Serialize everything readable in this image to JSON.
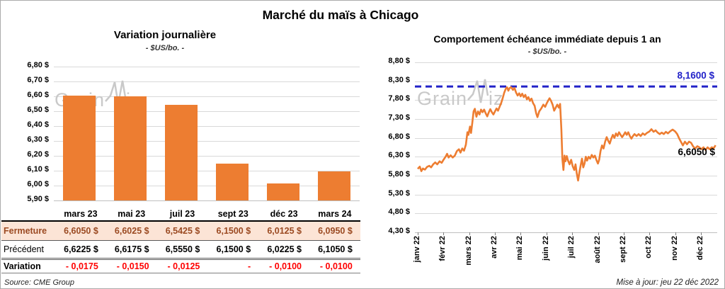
{
  "page": {
    "title": "Marché du maïs à Chicago",
    "watermark": {
      "text": "GrainWiz",
      "part1": "Grain",
      "part2": "iz"
    },
    "source": "Source: CME Group",
    "updated": "Mise à jour: jeu 22 déc 2022"
  },
  "colors": {
    "orange": "#ED7D31",
    "blue": "#2222C8",
    "red": "#FF0000",
    "fermeture_bg": "#FCE4D6",
    "fermeture_text": "#9B4A22",
    "grid": "#D9D9D9"
  },
  "chart_data": [
    {
      "type": "bar",
      "title": "Variation journalière",
      "subtitle": "- $US/bo. -",
      "categories": [
        "mars 23",
        "mai 23",
        "juil 23",
        "sept 23",
        "déc 23",
        "mars 24"
      ],
      "values": [
        6.605,
        6.6025,
        6.5425,
        6.15,
        6.0125,
        6.095
      ],
      "ylim": [
        5.9,
        6.8
      ],
      "ytick_step": 0.1,
      "yticks": [
        "6,80 $",
        "6,70 $",
        "6,60 $",
        "6,50 $",
        "6,40 $",
        "6,30 $",
        "6,20 $",
        "6,10 $",
        "6,00 $",
        "5,90 $"
      ],
      "grid": true,
      "bar_color": "#ED7D31",
      "table": {
        "rows": [
          {
            "kind": "fermeture",
            "label": "Fermeture",
            "values": [
              "6,6050 $",
              "6,6025 $",
              "6,5425 $",
              "6,1500 $",
              "6,0125 $",
              "6,0950 $"
            ]
          },
          {
            "kind": "precedent",
            "label": "Précédent",
            "values": [
              "6,6225 $",
              "6,6175 $",
              "6,5550 $",
              "6,1500 $",
              "6,0225 $",
              "6,1050 $"
            ]
          },
          {
            "kind": "variation",
            "label": "Variation",
            "values": [
              "- 0,0175",
              "- 0,0150",
              "- 0,0125",
              "-",
              "- 0,0100",
              "- 0,0100"
            ]
          }
        ]
      }
    },
    {
      "type": "line",
      "title": "Comportement échéance immédiate depuis 1 an",
      "subtitle": "- $US/bo. -",
      "x_labels": [
        "janv 22",
        "févr 22",
        "mars 22",
        "avr 22",
        "mai 22",
        "juin 22",
        "juil 22",
        "août 22",
        "sept 22",
        "oct 22",
        "nov 22",
        "déc 22"
      ],
      "ylim": [
        4.3,
        8.8
      ],
      "ytick_step": 0.5,
      "yticks": [
        "8,80 $",
        "8,30 $",
        "7,80 $",
        "7,30 $",
        "6,80 $",
        "6,30 $",
        "5,80 $",
        "5,30 $",
        "4,80 $",
        "4,30 $"
      ],
      "grid": true,
      "line_color": "#ED7D31",
      "reference_line": {
        "value": 8.16,
        "label": "8,1600 $",
        "color": "#2222C8"
      },
      "last_value": 6.605,
      "last_value_label": "6,6050 $",
      "points": [
        [
          0,
          5.98
        ],
        [
          0.08,
          6.04
        ],
        [
          0.14,
          5.92
        ],
        [
          0.2,
          5.99
        ],
        [
          0.28,
          5.96
        ],
        [
          0.36,
          6.03
        ],
        [
          0.45,
          6.06
        ],
        [
          0.52,
          6.02
        ],
        [
          0.6,
          6.1
        ],
        [
          0.68,
          6.15
        ],
        [
          0.76,
          6.1
        ],
        [
          0.85,
          6.18
        ],
        [
          0.93,
          6.14
        ],
        [
          1.0,
          6.22
        ],
        [
          1.08,
          6.3
        ],
        [
          1.14,
          6.38
        ],
        [
          1.2,
          6.28
        ],
        [
          1.28,
          6.34
        ],
        [
          1.36,
          6.28
        ],
        [
          1.44,
          6.33
        ],
        [
          1.52,
          6.45
        ],
        [
          1.6,
          6.5
        ],
        [
          1.66,
          6.41
        ],
        [
          1.73,
          6.52
        ],
        [
          1.8,
          6.46
        ],
        [
          1.87,
          6.62
        ],
        [
          1.93,
          6.95
        ],
        [
          1.97,
          6.88
        ],
        [
          2.03,
          7.1
        ],
        [
          2.07,
          6.93
        ],
        [
          2.12,
          7.2
        ],
        [
          2.17,
          7.5
        ],
        [
          2.22,
          7.57
        ],
        [
          2.28,
          7.36
        ],
        [
          2.34,
          7.5
        ],
        [
          2.4,
          7.42
        ],
        [
          2.46,
          7.55
        ],
        [
          2.52,
          7.48
        ],
        [
          2.58,
          7.55
        ],
        [
          2.64,
          7.45
        ],
        [
          2.7,
          7.37
        ],
        [
          2.76,
          7.48
        ],
        [
          2.82,
          7.56
        ],
        [
          2.88,
          7.48
        ],
        [
          2.94,
          7.42
        ],
        [
          3.0,
          7.5
        ],
        [
          3.06,
          7.58
        ],
        [
          3.12,
          7.52
        ],
        [
          3.18,
          7.62
        ],
        [
          3.24,
          7.72
        ],
        [
          3.3,
          7.85
        ],
        [
          3.36,
          8.0
        ],
        [
          3.42,
          8.1
        ],
        [
          3.47,
          8.14
        ],
        [
          3.52,
          8.05
        ],
        [
          3.57,
          8.12
        ],
        [
          3.63,
          8.14
        ],
        [
          3.7,
          8.07
        ],
        [
          3.76,
          8.12
        ],
        [
          3.82,
          8.0
        ],
        [
          3.88,
          7.92
        ],
        [
          3.94,
          7.98
        ],
        [
          4.0,
          7.9
        ],
        [
          4.06,
          7.97
        ],
        [
          4.12,
          7.88
        ],
        [
          4.18,
          7.94
        ],
        [
          4.24,
          7.82
        ],
        [
          4.3,
          7.88
        ],
        [
          4.36,
          7.78
        ],
        [
          4.42,
          7.84
        ],
        [
          4.48,
          7.72
        ],
        [
          4.54,
          7.65
        ],
        [
          4.6,
          7.45
        ],
        [
          4.65,
          7.35
        ],
        [
          4.72,
          7.5
        ],
        [
          4.8,
          7.58
        ],
        [
          4.88,
          7.68
        ],
        [
          4.95,
          7.62
        ],
        [
          5.0,
          7.7
        ],
        [
          5.06,
          7.78
        ],
        [
          5.12,
          7.85
        ],
        [
          5.18,
          7.78
        ],
        [
          5.24,
          7.68
        ],
        [
          5.3,
          7.52
        ],
        [
          5.36,
          7.6
        ],
        [
          5.42,
          7.68
        ],
        [
          5.48,
          7.6
        ],
        [
          5.53,
          7.7
        ],
        [
          5.58,
          7.02
        ],
        [
          5.62,
          6.25
        ],
        [
          5.66,
          5.95
        ],
        [
          5.7,
          6.33
        ],
        [
          5.74,
          6.18
        ],
        [
          5.79,
          6.32
        ],
        [
          5.84,
          6.2
        ],
        [
          5.9,
          6.1
        ],
        [
          5.96,
          6.22
        ],
        [
          6.02,
          6.05
        ],
        [
          6.08,
          5.95
        ],
        [
          6.13,
          6.1
        ],
        [
          6.18,
          5.85
        ],
        [
          6.23,
          5.67
        ],
        [
          6.28,
          5.88
        ],
        [
          6.33,
          6.08
        ],
        [
          6.38,
          6.25
        ],
        [
          6.43,
          6.02
        ],
        [
          6.48,
          6.12
        ],
        [
          6.53,
          6.3
        ],
        [
          6.58,
          6.2
        ],
        [
          6.64,
          6.3
        ],
        [
          6.7,
          6.25
        ],
        [
          6.76,
          6.35
        ],
        [
          6.82,
          6.28
        ],
        [
          6.88,
          6.33
        ],
        [
          6.94,
          6.22
        ],
        [
          7.0,
          6.12
        ],
        [
          7.05,
          6.22
        ],
        [
          7.1,
          6.45
        ],
        [
          7.16,
          6.6
        ],
        [
          7.22,
          6.52
        ],
        [
          7.28,
          6.7
        ],
        [
          7.34,
          6.82
        ],
        [
          7.4,
          6.72
        ],
        [
          7.46,
          6.65
        ],
        [
          7.52,
          6.78
        ],
        [
          7.58,
          6.88
        ],
        [
          7.64,
          6.8
        ],
        [
          7.7,
          6.92
        ],
        [
          7.76,
          6.85
        ],
        [
          7.82,
          6.95
        ],
        [
          7.88,
          6.88
        ],
        [
          7.94,
          6.82
        ],
        [
          8.0,
          6.88
        ],
        [
          8.06,
          6.95
        ],
        [
          8.12,
          6.88
        ],
        [
          8.18,
          6.95
        ],
        [
          8.24,
          6.85
        ],
        [
          8.3,
          6.78
        ],
        [
          8.36,
          6.85
        ],
        [
          8.42,
          6.9
        ],
        [
          8.5,
          6.85
        ],
        [
          8.58,
          6.9
        ],
        [
          8.66,
          6.85
        ],
        [
          8.74,
          6.92
        ],
        [
          8.82,
          6.88
        ],
        [
          8.9,
          6.93
        ],
        [
          9.0,
          6.97
        ],
        [
          9.08,
          7.03
        ],
        [
          9.16,
          6.96
        ],
        [
          9.24,
          7.0
        ],
        [
          9.32,
          6.94
        ],
        [
          9.4,
          6.9
        ],
        [
          9.48,
          6.94
        ],
        [
          9.56,
          6.9
        ],
        [
          9.64,
          6.96
        ],
        [
          9.72,
          6.92
        ],
        [
          9.8,
          6.97
        ],
        [
          9.9,
          7.02
        ],
        [
          10.0,
          6.97
        ],
        [
          10.08,
          6.9
        ],
        [
          10.16,
          6.78
        ],
        [
          10.24,
          6.68
        ],
        [
          10.3,
          6.6
        ],
        [
          10.38,
          6.7
        ],
        [
          10.46,
          6.63
        ],
        [
          10.54,
          6.7
        ],
        [
          10.62,
          6.67
        ],
        [
          10.7,
          6.57
        ],
        [
          10.78,
          6.52
        ],
        [
          10.86,
          6.58
        ],
        [
          10.94,
          6.55
        ],
        [
          11.02,
          6.5
        ],
        [
          11.1,
          6.55
        ],
        [
          11.18,
          6.48
        ],
        [
          11.26,
          6.55
        ],
        [
          11.34,
          6.5
        ],
        [
          11.42,
          6.55
        ],
        [
          11.5,
          6.53
        ],
        [
          11.57,
          6.605
        ]
      ]
    }
  ]
}
